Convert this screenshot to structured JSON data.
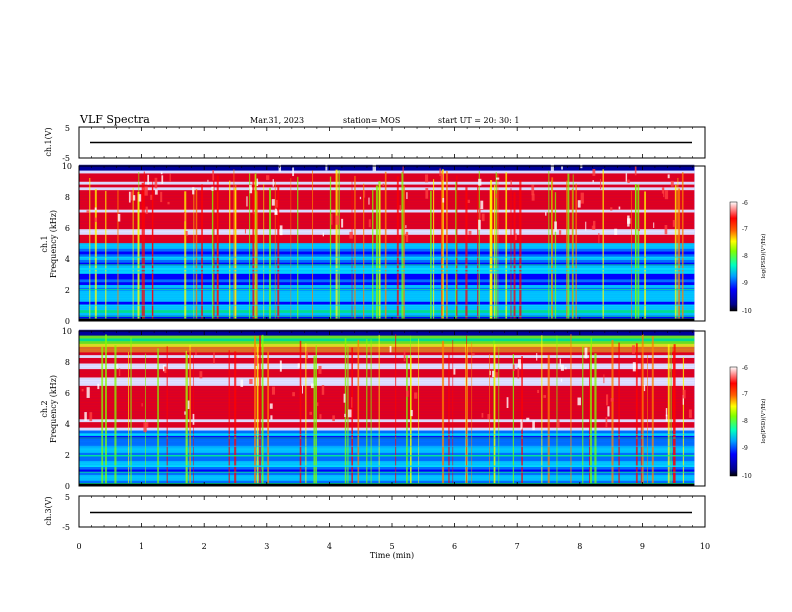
{
  "header": {
    "title": "VLF Spectra",
    "date": "Mar.31, 2023",
    "station": "station= MOS",
    "start": "start UT =  20: 30: 1"
  },
  "colors": {
    "colormap": [
      "#00008b",
      "#0000ff",
      "#0080ff",
      "#00e0ff",
      "#00ff80",
      "#80ff00",
      "#ffff00",
      "#ff8000",
      "#ff0000",
      "#ffffff"
    ]
  },
  "chart_data": [
    {
      "type": "line",
      "panel": "ch1-voltage",
      "ylabel": "ch.1(V)",
      "y_ticks": [
        "5",
        "-5"
      ],
      "ylim": [
        -5,
        5
      ],
      "x": [
        0,
        9.8
      ],
      "values": [
        0,
        0
      ]
    },
    {
      "type": "heatmap",
      "panel": "ch1-spectrogram",
      "ylabel": "ch.1 Frequency (kHz)",
      "ylabel_lines": [
        "ch.1",
        "Frequency (kHz)"
      ],
      "y_ticks": [
        "0",
        "2",
        "4",
        "6",
        "8",
        "10"
      ],
      "ylim": [
        0,
        10
      ],
      "xlim": [
        0,
        10
      ],
      "intense_band_khz": [
        5,
        9.8
      ],
      "colorbar": {
        "label": "log(PSD)(V²/Hz)",
        "ticks": [
          "-6",
          "-7",
          "-8",
          "-9",
          "-10"
        ],
        "range": [
          -10,
          -6
        ]
      }
    },
    {
      "type": "heatmap",
      "panel": "ch2-spectrogram",
      "ylabel": "ch.2 Frequency (kHz)",
      "ylabel_lines": [
        "ch.2",
        "Frequency (kHz)"
      ],
      "y_ticks": [
        "0",
        "2",
        "4",
        "6",
        "8",
        "10"
      ],
      "ylim": [
        0,
        10
      ],
      "xlim": [
        0,
        10
      ],
      "intense_band_khz": [
        3.5,
        8.5
      ],
      "colorbar": {
        "label": "log(PSD)(V²/Hz)",
        "ticks": [
          "-6",
          "-7",
          "-8",
          "-9",
          "-10"
        ],
        "range": [
          -10,
          -6
        ]
      }
    },
    {
      "type": "line",
      "panel": "ch3-voltage",
      "ylabel": "ch.3(V)",
      "y_ticks": [
        "5",
        "-5"
      ],
      "ylim": [
        -5,
        5
      ],
      "x": [
        0,
        9.8
      ],
      "values": [
        0,
        0
      ]
    }
  ],
  "x_axis": {
    "label": "Time (min)",
    "ticks": [
      "0",
      "1",
      "2",
      "3",
      "4",
      "5",
      "6",
      "7",
      "8",
      "9",
      "10"
    ],
    "xlim": [
      0,
      10
    ]
  }
}
